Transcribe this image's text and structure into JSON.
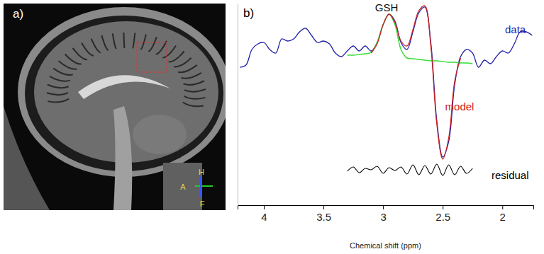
{
  "image_panel": {
    "label": "a)",
    "orientation_labels": [
      "H",
      "A",
      "F"
    ]
  },
  "chart_data": {
    "type": "line",
    "panel_label": "b)",
    "x_label": "Chemical shift (ppm)",
    "xlim": [
      4.22,
      1.74
    ],
    "xticks": [
      4,
      3.5,
      3,
      2.5,
      2
    ],
    "ylim": [
      -90,
      195
    ],
    "tick_labels": "x",
    "grid": false,
    "series": [
      {
        "name": "data",
        "color": "#1f1fa8",
        "x": [
          4.2,
          4.15,
          4.1,
          4.05,
          4.0,
          3.95,
          3.9,
          3.85,
          3.8,
          3.75,
          3.7,
          3.65,
          3.6,
          3.55,
          3.5,
          3.45,
          3.4,
          3.35,
          3.3,
          3.25,
          3.2,
          3.15,
          3.1,
          3.05,
          3.0,
          2.95,
          2.9,
          2.85,
          2.8,
          2.75,
          2.7,
          2.65,
          2.6,
          2.55,
          2.5,
          2.45,
          2.4,
          2.35,
          2.3,
          2.25,
          2.2,
          2.15,
          2.1,
          2.05,
          2.0,
          1.95,
          1.9,
          1.85,
          1.8,
          1.75
        ],
        "values": [
          105,
          108,
          130,
          138,
          140,
          130,
          125,
          145,
          142,
          145,
          155,
          160,
          150,
          140,
          142,
          138,
          125,
          120,
          128,
          135,
          128,
          135,
          128,
          140,
          165,
          180,
          170,
          140,
          130,
          155,
          182,
          190,
          140,
          30,
          -22,
          0,
          80,
          120,
          130,
          125,
          105,
          115,
          110,
          120,
          128,
          125,
          138,
          155,
          155,
          150
        ]
      },
      {
        "name": "model",
        "color": "#cc2222",
        "x": [
          3.1,
          3.05,
          3.0,
          2.95,
          2.9,
          2.85,
          2.8,
          2.75,
          2.7,
          2.65,
          2.6,
          2.55,
          2.5,
          2.45,
          2.4,
          2.35
        ],
        "values": [
          125,
          138,
          165,
          180,
          168,
          142,
          135,
          158,
          185,
          192,
          135,
          25,
          -25,
          5,
          85,
          118
        ]
      },
      {
        "name": "GSH",
        "color": "#33dd33",
        "x": [
          3.3,
          3.25,
          3.2,
          3.15,
          3.1,
          3.05,
          3.0,
          2.95,
          2.9,
          2.85,
          2.8,
          2.75,
          2.7,
          2.65,
          2.6,
          2.55,
          2.5,
          2.45,
          2.4,
          2.35,
          2.3,
          2.25
        ],
        "values": [
          122,
          122,
          123,
          124,
          126,
          140,
          165,
          180,
          165,
          130,
          118,
          117,
          116,
          115,
          114,
          114,
          113,
          112,
          112,
          111,
          111,
          110
        ]
      },
      {
        "name": "residual",
        "color": "#000000",
        "x": [
          3.3,
          3.25,
          3.2,
          3.15,
          3.1,
          3.05,
          3.0,
          2.95,
          2.9,
          2.85,
          2.8,
          2.75,
          2.7,
          2.65,
          2.6,
          2.55,
          2.5,
          2.45,
          2.4,
          2.35,
          2.3,
          2.25
        ],
        "values": [
          -42,
          -36,
          -44,
          -38,
          -40,
          -35,
          -45,
          -37,
          -41,
          -36,
          -46,
          -33,
          -47,
          -34,
          -46,
          -32,
          -48,
          -33,
          -47,
          -35,
          -45,
          -38
        ]
      }
    ]
  }
}
